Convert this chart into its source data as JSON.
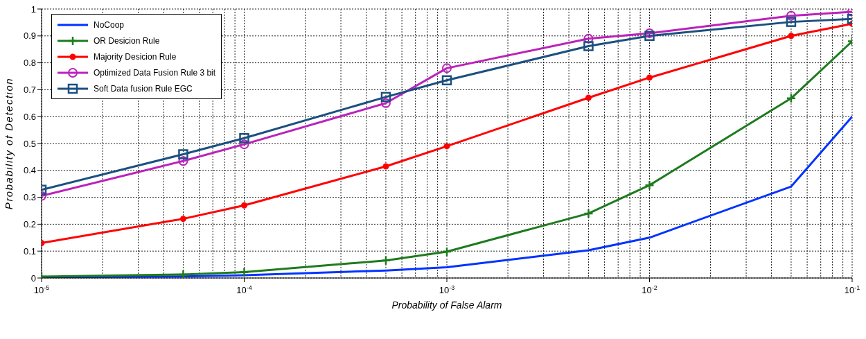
{
  "chart_data": {
    "type": "line",
    "xlabel": "Probability of False Alarm",
    "ylabel": "Probability of Detection",
    "x": [
      1e-05,
      5e-05,
      0.0001,
      0.0005,
      0.001,
      0.005,
      0.01,
      0.05,
      0.1
    ],
    "series": [
      {
        "name": "NoCoop",
        "color": "#0033ff",
        "marker": "none",
        "values": [
          0.003,
          0.006,
          0.01,
          0.028,
          0.04,
          0.103,
          0.15,
          0.34,
          0.6
        ]
      },
      {
        "name": "OR Desicion Rule",
        "color": "#1e7b1e",
        "marker": "cross",
        "values": [
          0.005,
          0.013,
          0.022,
          0.065,
          0.098,
          0.24,
          0.345,
          0.668,
          0.88
        ]
      },
      {
        "name": "Majority Desicion Rule",
        "color": "#ff0000",
        "marker": "circle",
        "values": [
          0.13,
          0.22,
          0.27,
          0.415,
          0.49,
          0.67,
          0.745,
          0.9,
          0.945
        ]
      },
      {
        "name": "Optimized Data Fusion Rule 3 bit",
        "color": "#bb22bb",
        "marker": "circle",
        "values": [
          0.305,
          0.435,
          0.497,
          0.65,
          0.78,
          0.89,
          0.91,
          0.975,
          0.99
        ]
      },
      {
        "name": "Soft Data fusion Rule EGC",
        "color": "#1a5080",
        "marker": "square",
        "values": [
          0.328,
          0.46,
          0.52,
          0.673,
          0.735,
          0.862,
          0.9,
          0.952,
          0.963
        ]
      }
    ],
    "log": "x",
    "xlim": [
      1e-05,
      0.1
    ],
    "xticks": [
      {
        "value": 1e-05,
        "label": "10$^{-5}$"
      },
      {
        "value": 0.0001,
        "label": "10$^{-4}$"
      },
      {
        "value": 0.001,
        "label": "10$^{-3}$"
      },
      {
        "value": 0.01,
        "label": "10$^{-2}$"
      },
      {
        "value": 0.1,
        "label": "10$^{-1}$"
      }
    ],
    "ylim": [
      0,
      1
    ],
    "yticks": [
      0,
      0.1,
      0.2,
      0.3,
      0.4,
      0.5,
      0.6,
      0.7,
      0.8,
      0.9,
      1
    ],
    "grid": true,
    "legend": "top left",
    "line_style": "solid"
  }
}
